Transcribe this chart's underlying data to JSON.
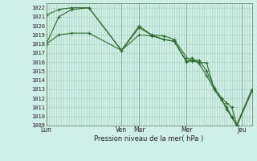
{
  "xlabel": "Pression niveau de la mer( hPa )",
  "bg_color": "#ceeee6",
  "grid_major_color": "#aaccbb",
  "grid_minor_color": "#c0ddd4",
  "line_color": "#2d6b2d",
  "ylim": [
    1009,
    1022.5
  ],
  "yticks": [
    1009,
    1010,
    1011,
    1012,
    1013,
    1014,
    1015,
    1016,
    1017,
    1018,
    1019,
    1020,
    1021,
    1022
  ],
  "xtick_labels": [
    "Lun",
    "Ven",
    "Mar",
    "Mer",
    "Jeu"
  ],
  "xtick_positions": [
    0,
    30,
    37,
    56,
    78
  ],
  "xlim": [
    0,
    82
  ],
  "vline_positions": [
    0,
    30,
    37,
    56,
    78
  ],
  "series1_x": [
    0,
    5,
    10,
    17,
    30,
    37,
    42,
    47,
    51,
    56,
    58,
    61,
    64,
    67,
    70,
    72,
    74,
    76,
    82
  ],
  "series1_y": [
    1018.0,
    1019.0,
    1019.2,
    1019.2,
    1017.3,
    1019.0,
    1018.9,
    1018.5,
    1018.3,
    1016.1,
    1016.1,
    1016.0,
    1015.9,
    1013.0,
    1011.8,
    1011.0,
    1010.0,
    1009.0,
    1012.8
  ],
  "series2_x": [
    0,
    5,
    10,
    17,
    30,
    37,
    42,
    47,
    51,
    56,
    58,
    61,
    64,
    67,
    70,
    72,
    74,
    76,
    82
  ],
  "series2_y": [
    1021.2,
    1021.8,
    1022.0,
    1022.0,
    1017.3,
    1019.8,
    1019.0,
    1018.9,
    1018.5,
    1016.5,
    1016.2,
    1016.2,
    1015.0,
    1013.2,
    1012.0,
    1011.5,
    1011.0,
    1009.1,
    1013.0
  ],
  "series3_x": [
    0,
    5,
    10,
    17,
    30,
    37,
    42,
    47,
    51,
    56,
    58,
    61,
    64,
    67,
    70,
    72,
    74,
    76,
    82
  ],
  "series3_y": [
    1018.0,
    1021.0,
    1021.8,
    1022.0,
    1017.3,
    1020.0,
    1019.0,
    1018.5,
    1018.3,
    1016.0,
    1016.5,
    1015.8,
    1014.5,
    1013.0,
    1011.8,
    1010.8,
    1009.9,
    1009.0,
    1012.8
  ]
}
